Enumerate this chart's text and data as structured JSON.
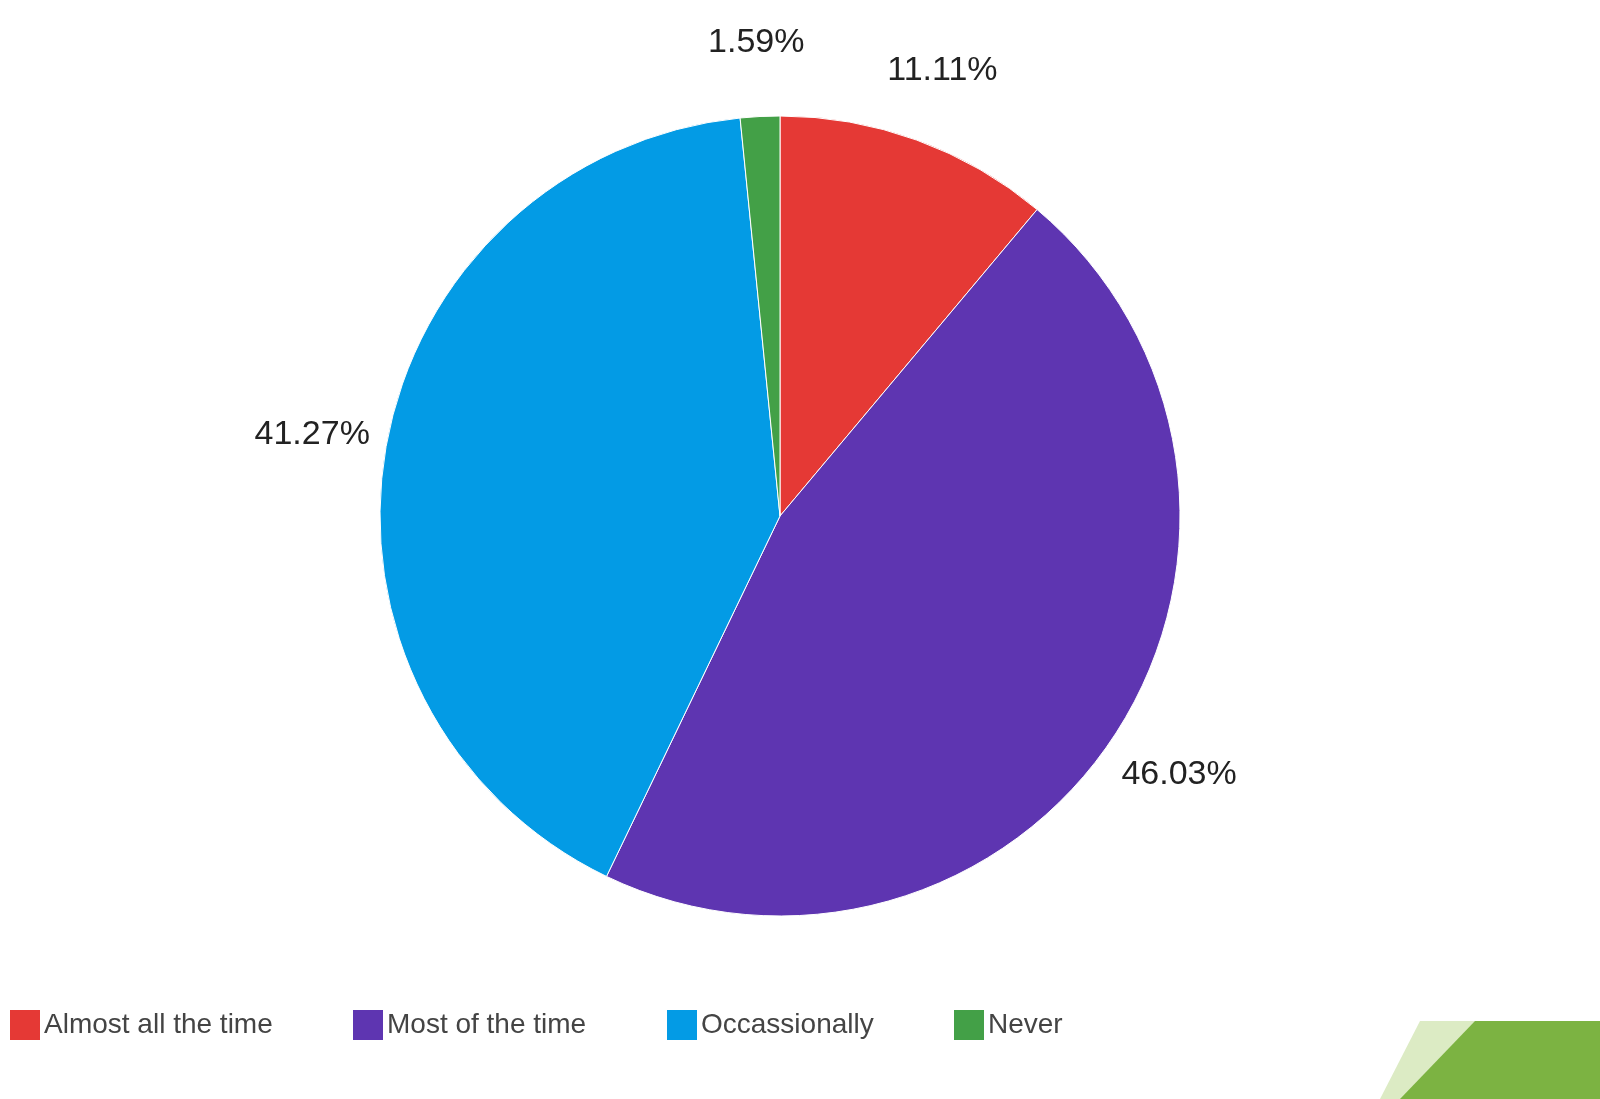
{
  "chart_data": {
    "type": "pie",
    "categories": [
      "Almost all the time",
      "Most of the time",
      "Occassionally",
      "Never"
    ],
    "values": [
      11.11,
      46.03,
      41.27,
      1.59
    ],
    "colors": [
      "#e53935",
      "#5e35b1",
      "#039be5",
      "#43a047"
    ],
    "value_labels": [
      "11.11%",
      "46.03%",
      "41.27%",
      "1.59%"
    ],
    "legend": "bottom"
  }
}
